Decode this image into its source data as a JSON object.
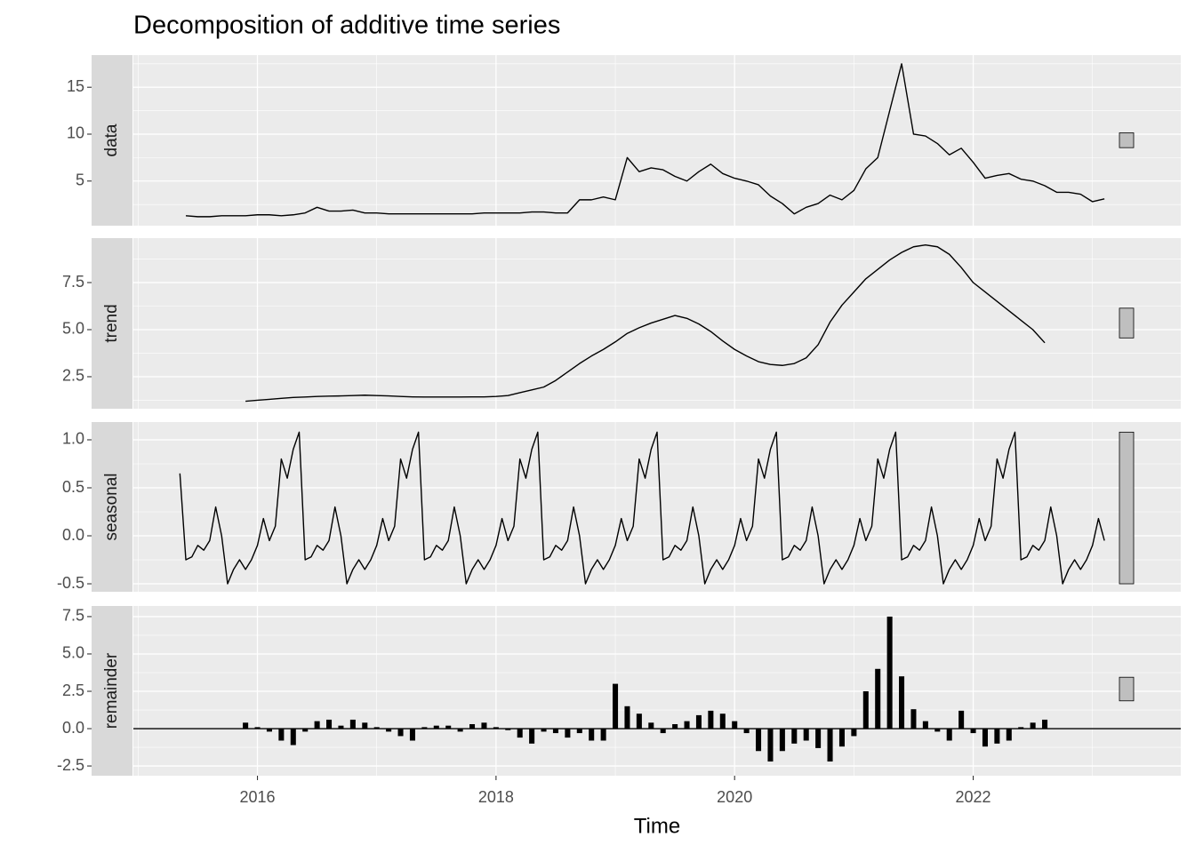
{
  "chart_data": [
    {
      "type": "line",
      "title": "Decomposition of additive time series",
      "ylabel": "data",
      "x": [
        2015.4,
        2015.5,
        2015.6,
        2015.7,
        2015.8,
        2015.9,
        2016.0,
        2016.1,
        2016.2,
        2016.3,
        2016.4,
        2016.5,
        2016.6,
        2016.7,
        2016.8,
        2016.9,
        2017.0,
        2017.1,
        2017.2,
        2017.3,
        2017.4,
        2017.5,
        2017.6,
        2017.7,
        2017.8,
        2017.9,
        2018.0,
        2018.1,
        2018.2,
        2018.3,
        2018.4,
        2018.5,
        2018.6,
        2018.7,
        2018.8,
        2018.9,
        2019.0,
        2019.1,
        2019.2,
        2019.3,
        2019.4,
        2019.5,
        2019.6,
        2019.7,
        2019.8,
        2019.9,
        2020.0,
        2020.1,
        2020.2,
        2020.3,
        2020.4,
        2020.5,
        2020.6,
        2020.7,
        2020.8,
        2020.9,
        2021.0,
        2021.1,
        2021.2,
        2021.3,
        2021.4,
        2021.5,
        2021.6,
        2021.7,
        2021.8,
        2021.9,
        2022.0,
        2022.1,
        2022.2,
        2022.3,
        2022.4,
        2022.5,
        2022.6,
        2022.7,
        2022.8,
        2022.9,
        2023.0,
        2023.1
      ],
      "values": [
        1.3,
        1.2,
        1.2,
        1.3,
        1.3,
        1.3,
        1.4,
        1.4,
        1.3,
        1.4,
        1.6,
        2.2,
        1.8,
        1.8,
        1.9,
        1.6,
        1.6,
        1.5,
        1.5,
        1.5,
        1.5,
        1.5,
        1.5,
        1.5,
        1.5,
        1.6,
        1.6,
        1.6,
        1.6,
        1.7,
        1.7,
        1.6,
        1.6,
        3.0,
        3.0,
        3.3,
        3.0,
        7.5,
        6.0,
        6.4,
        6.2,
        5.5,
        5.0,
        6.0,
        6.8,
        5.8,
        5.3,
        5.0,
        4.6,
        3.4,
        2.6,
        1.5,
        2.2,
        2.6,
        3.5,
        3.0,
        4.0,
        6.3,
        7.5,
        12.5,
        17.5,
        10.0,
        9.8,
        9.0,
        7.8,
        8.5,
        7.0,
        5.3,
        5.6,
        5.8,
        5.2,
        5.0,
        4.5,
        3.8,
        3.8,
        3.6,
        2.8,
        3.1
      ],
      "color": "#000000",
      "xlim": [
        2014.96,
        2023.74
      ],
      "xticks": [
        2016,
        2018,
        2020,
        2022
      ],
      "ylim": [
        0.24,
        18.43
      ],
      "yticks": [
        5,
        10,
        15
      ],
      "grid": true
    },
    {
      "type": "line",
      "ylabel": "trend",
      "x": [
        2015.9,
        2016.0,
        2016.1,
        2016.2,
        2016.3,
        2016.4,
        2016.5,
        2016.6,
        2016.7,
        2016.8,
        2016.9,
        2017.0,
        2017.1,
        2017.2,
        2017.3,
        2017.4,
        2017.5,
        2017.6,
        2017.7,
        2017.8,
        2017.9,
        2018.0,
        2018.1,
        2018.2,
        2018.3,
        2018.4,
        2018.5,
        2018.6,
        2018.7,
        2018.8,
        2018.9,
        2019.0,
        2019.1,
        2019.2,
        2019.3,
        2019.4,
        2019.5,
        2019.6,
        2019.7,
        2019.8,
        2019.9,
        2020.0,
        2020.1,
        2020.2,
        2020.3,
        2020.4,
        2020.5,
        2020.6,
        2020.7,
        2020.8,
        2020.9,
        2021.0,
        2021.1,
        2021.2,
        2021.3,
        2021.4,
        2021.5,
        2021.6,
        2021.7,
        2021.8,
        2021.9,
        2022.0,
        2022.1,
        2022.2,
        2022.3,
        2022.4,
        2022.5,
        2022.6
      ],
      "values": [
        1.2,
        1.25,
        1.3,
        1.35,
        1.4,
        1.42,
        1.45,
        1.47,
        1.48,
        1.5,
        1.52,
        1.5,
        1.48,
        1.45,
        1.43,
        1.42,
        1.42,
        1.42,
        1.42,
        1.43,
        1.43,
        1.45,
        1.5,
        1.65,
        1.8,
        1.95,
        2.3,
        2.75,
        3.2,
        3.6,
        3.95,
        4.35,
        4.8,
        5.1,
        5.35,
        5.55,
        5.75,
        5.6,
        5.3,
        4.9,
        4.4,
        3.95,
        3.6,
        3.3,
        3.15,
        3.1,
        3.2,
        3.5,
        4.2,
        5.4,
        6.3,
        7.0,
        7.7,
        8.2,
        8.7,
        9.1,
        9.4,
        9.5,
        9.4,
        9.0,
        8.3,
        7.5,
        7.0,
        6.5,
        6.0,
        5.5,
        5.0,
        4.3
      ],
      "color": "#000000",
      "xlim": [
        2014.96,
        2023.74
      ],
      "xticks": [
        2016,
        2018,
        2020,
        2022
      ],
      "ylim": [
        0.8,
        9.86
      ],
      "yticks": [
        2.5,
        {
          "value": 5,
          "label": "5.0"
        },
        7.5
      ],
      "grid": true
    },
    {
      "type": "line",
      "ylabel": "seasonal",
      "x": [
        2015.35,
        2015.4,
        2015.45,
        2015.5,
        2015.55,
        2015.6,
        2015.65,
        2015.7,
        2015.75,
        2015.8,
        2015.85,
        2015.9,
        2015.95,
        2016.0,
        2016.05,
        2016.1,
        2016.15,
        2016.2,
        2016.25,
        2016.3,
        2016.35,
        2016.4,
        2016.45,
        2016.5,
        2016.55,
        2016.6,
        2016.65,
        2016.7,
        2016.75,
        2016.8,
        2016.85,
        2016.9,
        2016.95,
        2017.0,
        2017.05,
        2017.1,
        2017.15,
        2017.2,
        2017.25,
        2017.3,
        2017.35,
        2017.4,
        2017.45,
        2017.5,
        2017.55,
        2017.6,
        2017.65,
        2017.7,
        2017.75,
        2017.8,
        2017.85,
        2017.9,
        2017.95,
        2018.0,
        2018.05,
        2018.1,
        2018.15,
        2018.2,
        2018.25,
        2018.3,
        2018.35,
        2018.4,
        2018.45,
        2018.5,
        2018.55,
        2018.6,
        2018.65,
        2018.7,
        2018.75,
        2018.8,
        2018.85,
        2018.9,
        2018.95,
        2019.0,
        2019.05,
        2019.1,
        2019.15,
        2019.2,
        2019.25,
        2019.3,
        2019.35,
        2019.4,
        2019.45,
        2019.5,
        2019.55,
        2019.6,
        2019.65,
        2019.7,
        2019.75,
        2019.8,
        2019.85,
        2019.9,
        2019.95,
        2020.0,
        2020.05,
        2020.1,
        2020.15,
        2020.2,
        2020.25,
        2020.3,
        2020.35,
        2020.4,
        2020.45,
        2020.5,
        2020.55,
        2020.6,
        2020.65,
        2020.7,
        2020.75,
        2020.8,
        2020.85,
        2020.9,
        2020.95,
        2021.0,
        2021.05,
        2021.1,
        2021.15,
        2021.2,
        2021.25,
        2021.3,
        2021.35,
        2021.4,
        2021.45,
        2021.5,
        2021.55,
        2021.6,
        2021.65,
        2021.7,
        2021.75,
        2021.8,
        2021.85,
        2021.9,
        2021.95,
        2022.0,
        2022.05,
        2022.1,
        2022.15,
        2022.2,
        2022.25,
        2022.3,
        2022.35,
        2022.4,
        2022.45,
        2022.5,
        2022.55,
        2022.6,
        2022.65,
        2022.7,
        2022.75,
        2022.8,
        2022.85,
        2022.9,
        2022.95,
        2023.0,
        2023.05,
        2023.1
      ],
      "values": [
        0.65,
        -0.25,
        -0.22,
        -0.1,
        -0.15,
        -0.05,
        0.3,
        0.0,
        -0.5,
        -0.35,
        -0.25,
        -0.35,
        -0.25,
        -0.1,
        0.18,
        -0.05,
        0.1,
        0.8,
        0.6,
        0.9,
        1.08,
        -0.25,
        -0.22,
        -0.1,
        -0.15,
        -0.05,
        0.3,
        0.0,
        -0.5,
        -0.35,
        -0.25,
        -0.35,
        -0.25,
        -0.1,
        0.18,
        -0.05,
        0.1,
        0.8,
        0.6,
        0.9,
        1.08,
        -0.25,
        -0.22,
        -0.1,
        -0.15,
        -0.05,
        0.3,
        0.0,
        -0.5,
        -0.35,
        -0.25,
        -0.35,
        -0.25,
        -0.1,
        0.18,
        -0.05,
        0.1,
        0.8,
        0.6,
        0.9,
        1.08,
        -0.25,
        -0.22,
        -0.1,
        -0.15,
        -0.05,
        0.3,
        0.0,
        -0.5,
        -0.35,
        -0.25,
        -0.35,
        -0.25,
        -0.1,
        0.18,
        -0.05,
        0.1,
        0.8,
        0.6,
        0.9,
        1.08,
        -0.25,
        -0.22,
        -0.1,
        -0.15,
        -0.05,
        0.3,
        0.0,
        -0.5,
        -0.35,
        -0.25,
        -0.35,
        -0.25,
        -0.1,
        0.18,
        -0.05,
        0.1,
        0.8,
        0.6,
        0.9,
        1.08,
        -0.25,
        -0.22,
        -0.1,
        -0.15,
        -0.05,
        0.3,
        0.0,
        -0.5,
        -0.35,
        -0.25,
        -0.35,
        -0.25,
        -0.1,
        0.18,
        -0.05,
        0.1,
        0.8,
        0.6,
        0.9,
        1.08,
        -0.25,
        -0.22,
        -0.1,
        -0.15,
        -0.05,
        0.3,
        0.0,
        -0.5,
        -0.35,
        -0.25,
        -0.35,
        -0.25,
        -0.1,
        0.18,
        -0.05,
        0.1,
        0.8,
        0.6,
        0.9,
        1.08,
        -0.25,
        -0.22,
        -0.1,
        -0.15,
        -0.05,
        0.3,
        0.0,
        -0.5,
        -0.35,
        -0.25,
        -0.35,
        -0.25,
        -0.1,
        0.18,
        -0.05
      ],
      "color": "#000000",
      "xlim": [
        2014.96,
        2023.74
      ],
      "xticks": [
        2016,
        2018,
        2020,
        2022
      ],
      "ylim": [
        -0.583,
        1.185
      ],
      "yticks": [
        -0.5,
        {
          "value": 0,
          "label": "0.0"
        },
        0.5,
        {
          "value": 1,
          "label": "1.0"
        }
      ],
      "grid": true
    },
    {
      "type": "bar",
      "ylabel": "remainder",
      "xlabel": "Time",
      "x": [
        2015.9,
        2016.0,
        2016.1,
        2016.2,
        2016.3,
        2016.4,
        2016.5,
        2016.6,
        2016.7,
        2016.8,
        2016.9,
        2017.0,
        2017.1,
        2017.2,
        2017.3,
        2017.4,
        2017.5,
        2017.6,
        2017.7,
        2017.8,
        2017.9,
        2018.0,
        2018.1,
        2018.2,
        2018.3,
        2018.4,
        2018.5,
        2018.6,
        2018.7,
        2018.8,
        2018.9,
        2019.0,
        2019.1,
        2019.2,
        2019.3,
        2019.4,
        2019.5,
        2019.6,
        2019.7,
        2019.8,
        2019.9,
        2020.0,
        2020.1,
        2020.2,
        2020.3,
        2020.4,
        2020.5,
        2020.6,
        2020.7,
        2020.8,
        2020.9,
        2021.0,
        2021.1,
        2021.2,
        2021.3,
        2021.4,
        2021.5,
        2021.6,
        2021.7,
        2021.8,
        2021.9,
        2022.0,
        2022.1,
        2022.2,
        2022.3,
        2022.4,
        2022.5,
        2022.6
      ],
      "values": [
        0.4,
        0.1,
        -0.2,
        -0.8,
        -1.1,
        -0.2,
        0.5,
        0.6,
        0.2,
        0.6,
        0.4,
        0.1,
        -0.2,
        -0.5,
        -0.8,
        0.1,
        0.2,
        0.2,
        -0.2,
        0.3,
        0.4,
        0.1,
        -0.1,
        -0.6,
        -1.0,
        -0.2,
        -0.3,
        -0.6,
        -0.3,
        -0.8,
        -0.8,
        3.0,
        1.5,
        1.0,
        0.4,
        -0.3,
        0.3,
        0.5,
        0.9,
        1.2,
        1.0,
        0.5,
        -0.3,
        -1.5,
        -2.2,
        -1.5,
        -1.0,
        -0.8,
        -1.3,
        -2.2,
        -1.2,
        -0.5,
        2.5,
        4.0,
        7.5,
        3.5,
        1.3,
        0.5,
        -0.2,
        -0.8,
        1.2,
        -0.3,
        -1.2,
        -1.0,
        -0.8,
        0.1,
        0.4,
        0.6
      ],
      "color": "#000000",
      "xlim": [
        2014.96,
        2023.74
      ],
      "xticks": [
        2016,
        2018,
        2020,
        2022
      ],
      "ylim": [
        -3.15,
        8.21
      ],
      "yticks": [
        {
          "value": -2.5,
          "label": "-2.5"
        },
        {
          "value": 0,
          "label": "0.0"
        },
        2.5,
        {
          "value": 5,
          "label": "5.0"
        },
        7.5
      ],
      "grid": true
    }
  ]
}
